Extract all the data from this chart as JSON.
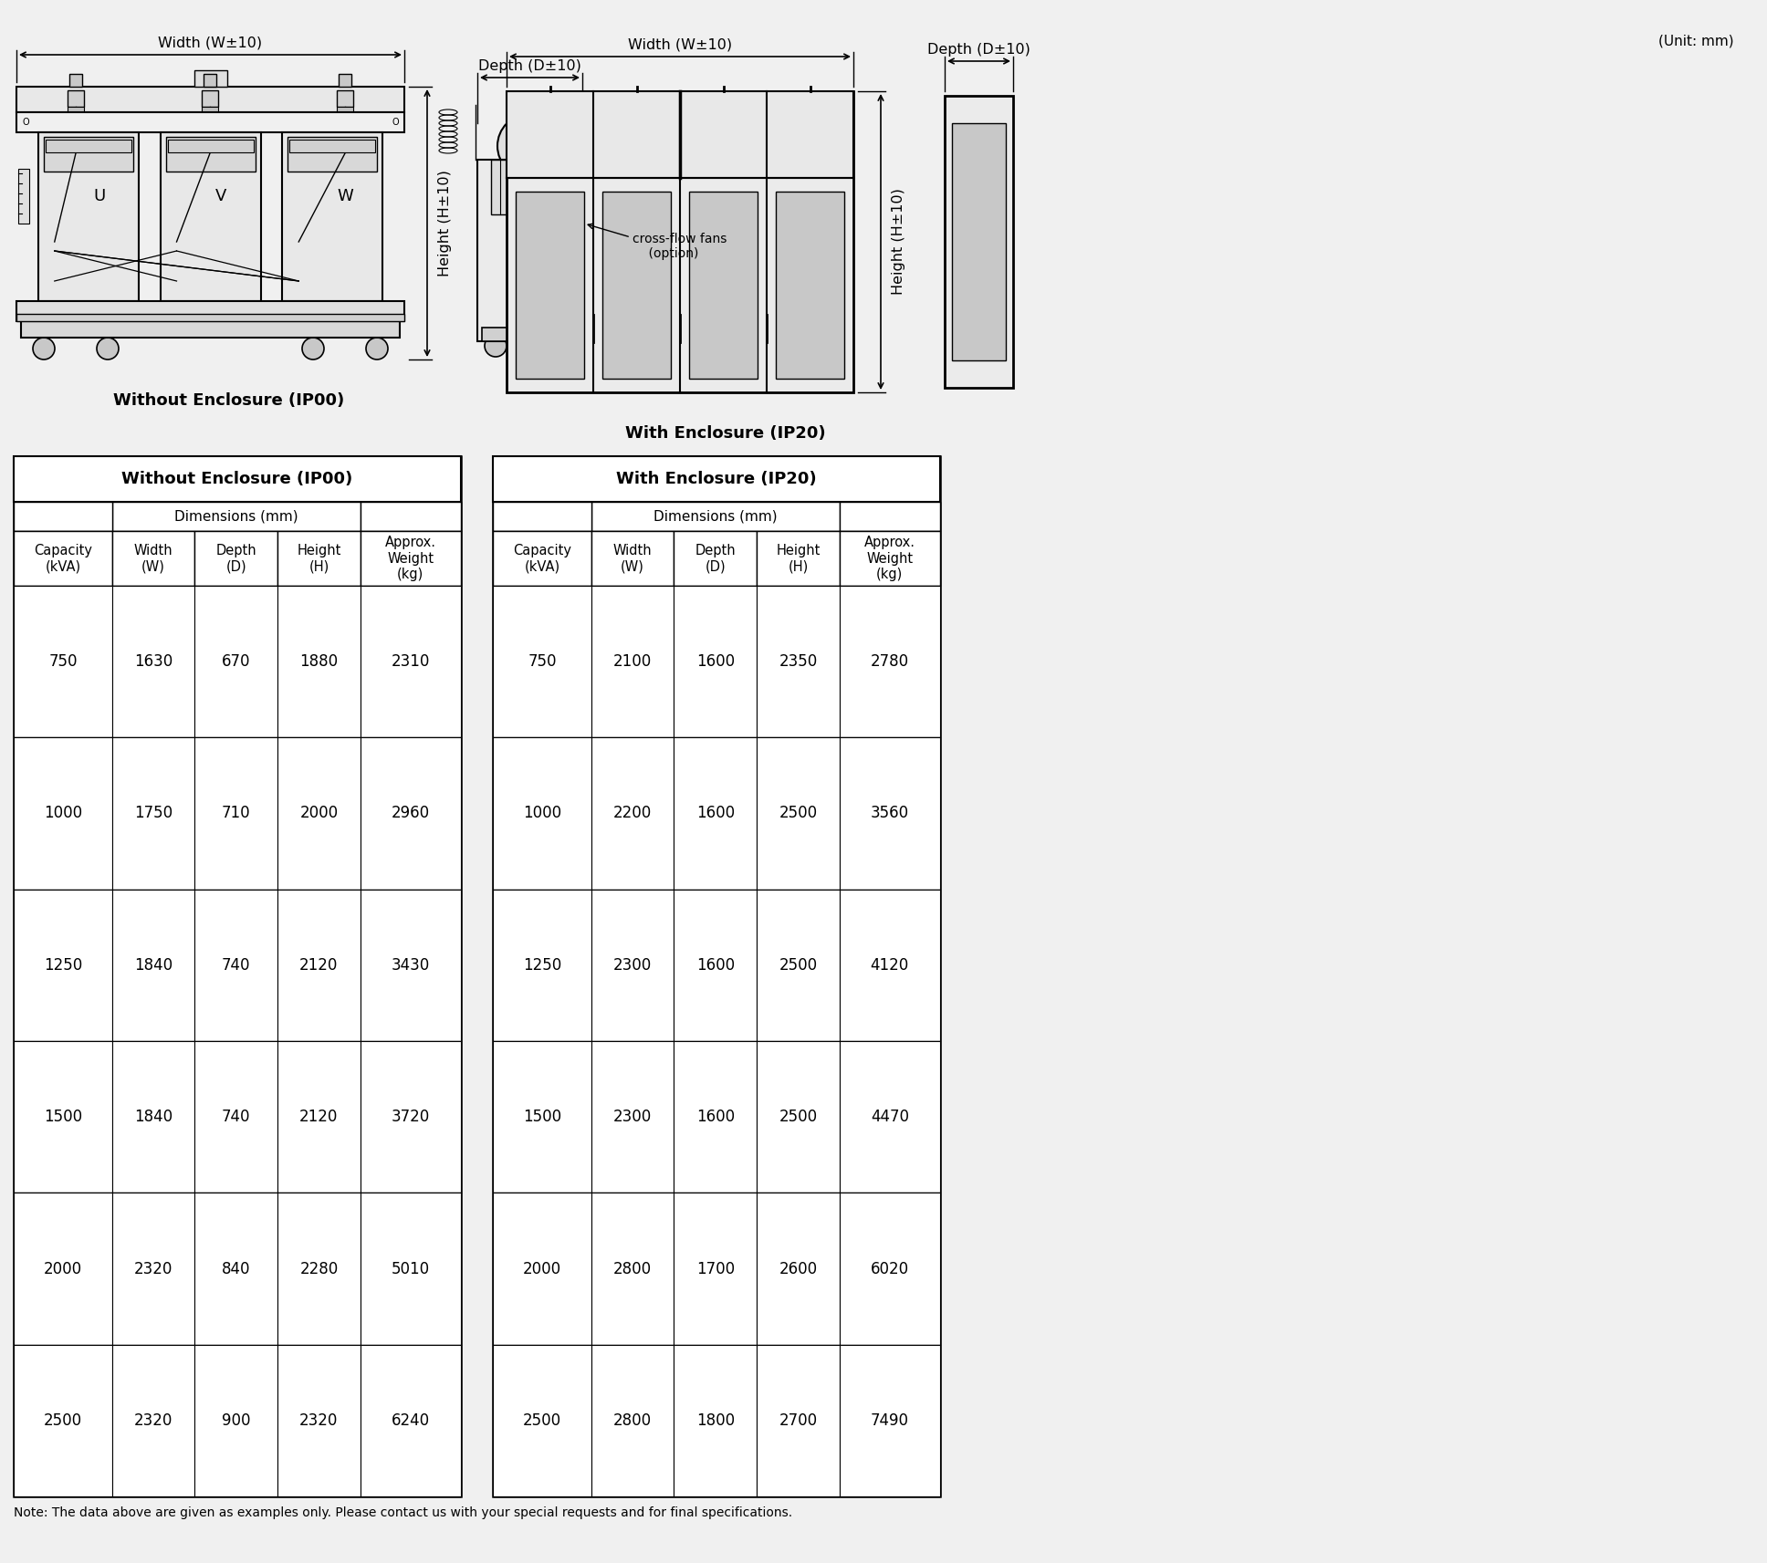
{
  "unit_label": "(Unit: mm)",
  "bg_color": "#f0f0f0",
  "label_ip00": "Without Enclosure (IP00)",
  "label_ip20": "With Enclosure (IP20)",
  "note": "Note: The data above are given as examples only. Please contact us with your special requests and for final specifications.",
  "table_ip00": {
    "title": "Without Enclosure (IP00)",
    "rows": [
      [
        750,
        1630,
        670,
        1880,
        2310
      ],
      [
        1000,
        1750,
        710,
        2000,
        2960
      ],
      [
        1250,
        1840,
        740,
        2120,
        3430
      ],
      [
        1500,
        1840,
        740,
        2120,
        3720
      ],
      [
        2000,
        2320,
        840,
        2280,
        5010
      ],
      [
        2500,
        2320,
        900,
        2320,
        6240
      ]
    ]
  },
  "table_ip20": {
    "title": "With Enclosure (IP20)",
    "rows": [
      [
        750,
        2100,
        1600,
        2350,
        2780
      ],
      [
        1000,
        2200,
        1600,
        2500,
        3560
      ],
      [
        1250,
        2300,
        1600,
        2500,
        4120
      ],
      [
        1500,
        2300,
        1600,
        2500,
        4470
      ],
      [
        2000,
        2800,
        1700,
        2600,
        6020
      ],
      [
        2500,
        2800,
        1800,
        2700,
        7490
      ]
    ]
  }
}
